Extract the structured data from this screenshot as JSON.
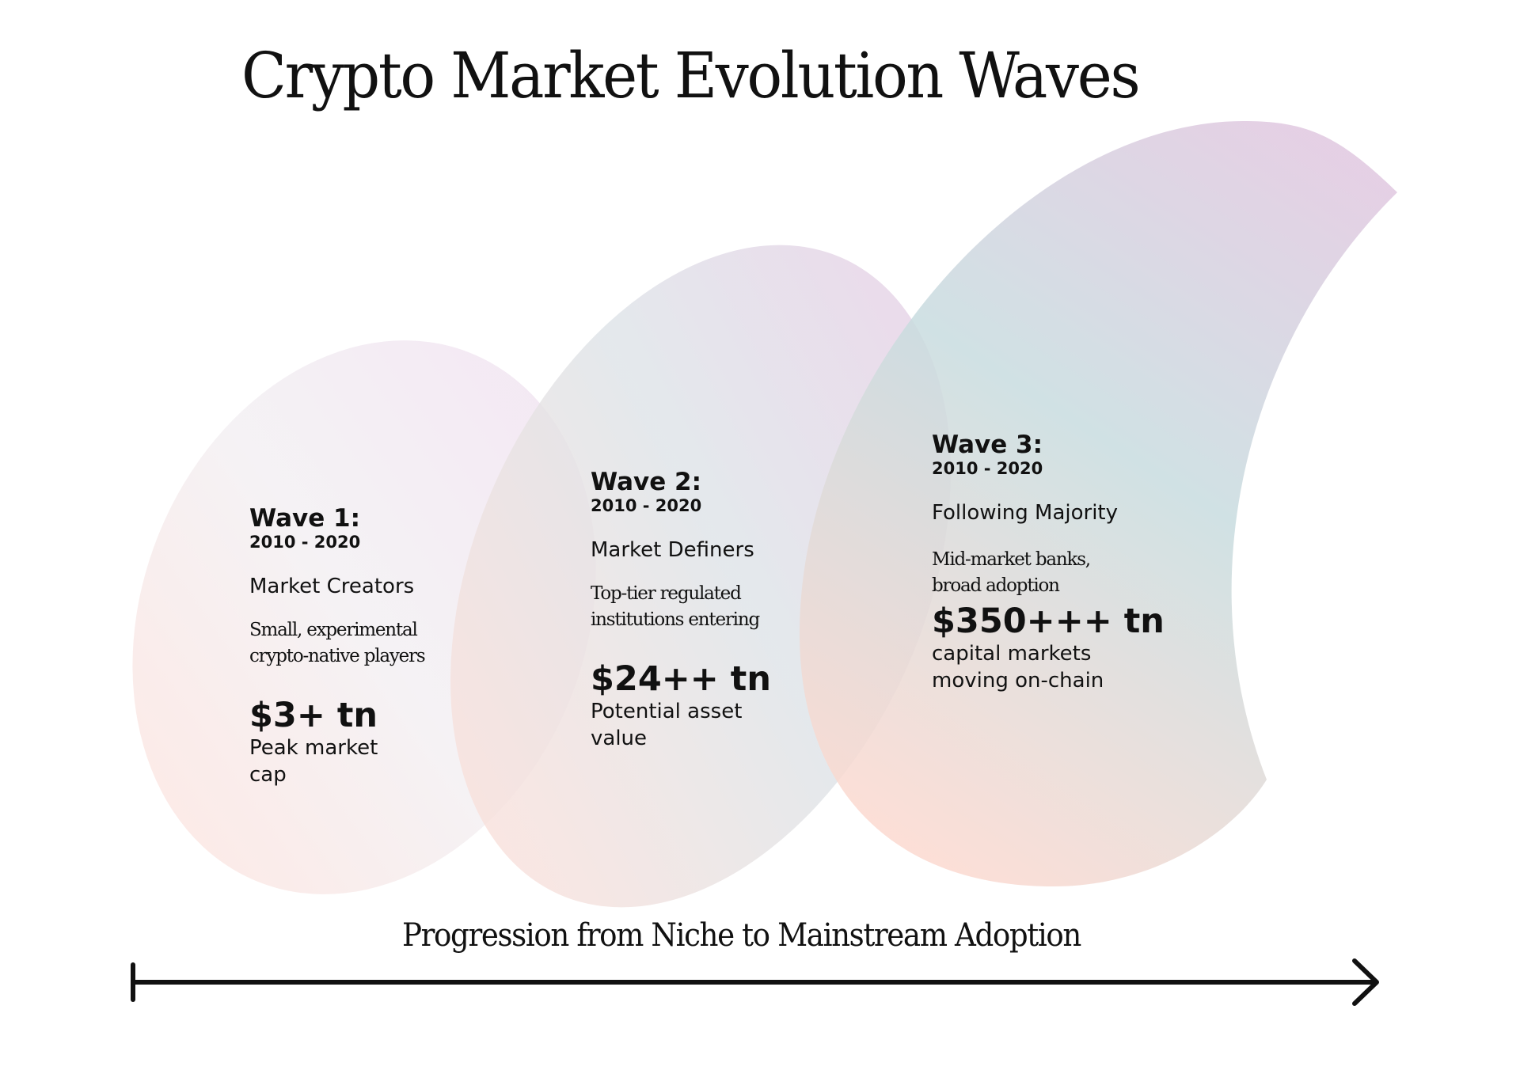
{
  "title": "Crypto Market Evolution Waves",
  "waves": [
    {
      "label": "Wave 1:",
      "years": "2010 - 2020",
      "group": "Market Creators",
      "description": "Small, experimental\ncrypto-native players",
      "value": "$3+ tn",
      "caption": "Peak market\ncap"
    },
    {
      "label": "Wave 2:",
      "years": "2010 - 2020",
      "group": "Market Definers",
      "description": "Top-tier regulated\ninstitutions entering",
      "value": "$24++ tn",
      "caption": "Potential asset\nvalue"
    },
    {
      "label": "Wave 3:",
      "years": "2010 - 2020",
      "group": "Following Majority",
      "description": "Mid-market banks,\nbroad adoption",
      "value": "$350+++ tn",
      "caption": "capital markets\nmoving on-chain"
    }
  ],
  "progression_label": "Progression from Niche to Mainstream Adoption",
  "colors": {
    "text": "#111111",
    "lavender": "#d9c3dd",
    "teal": "#b6d8dc",
    "peach": "#fad8cf",
    "arrow": "#111111"
  }
}
